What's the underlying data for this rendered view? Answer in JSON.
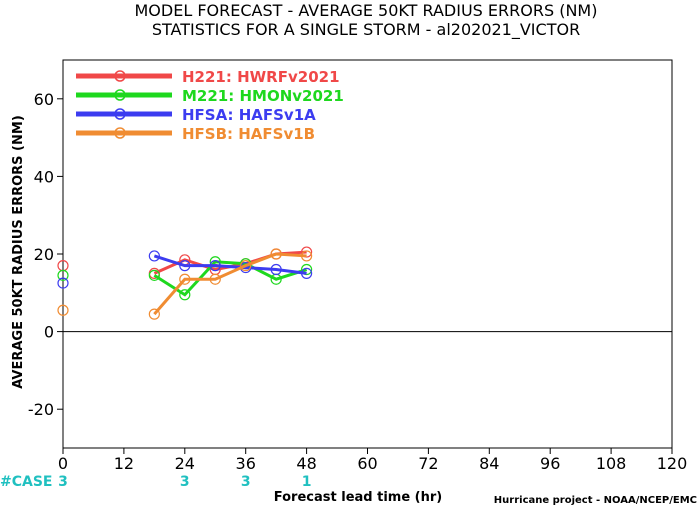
{
  "chart_data": {
    "type": "line",
    "title": "MODEL FORECAST - AVERAGE 50KT RADIUS ERRORS (NM)",
    "subtitle": "STATISTICS FOR A SINGLE STORM - al202021_VICTOR",
    "xlabel": "Forecast lead time (hr)",
    "ylabel": "AVERAGE 50KT RADIUS ERRORS (NM)",
    "xlim": [
      0,
      120
    ],
    "ylim": [
      -30,
      70
    ],
    "xticks": [
      0,
      12,
      24,
      36,
      48,
      60,
      72,
      84,
      96,
      108,
      120
    ],
    "yticks": [
      -20,
      0,
      20,
      40,
      60
    ],
    "zero_line": true,
    "legend_position": "top-left",
    "series": [
      {
        "name": "H221: HWRFv2021",
        "color": "#f04848",
        "x": [
          0,
          18,
          24,
          30,
          36,
          42,
          48
        ],
        "y": [
          17,
          15,
          18.5,
          16,
          17.5,
          20,
          20.5
        ]
      },
      {
        "name": "M221: HMONv2021",
        "color": "#1ed81e",
        "x": [
          0,
          18,
          24,
          30,
          36,
          42,
          48
        ],
        "y": [
          14.5,
          14.5,
          9.5,
          18,
          17.5,
          13.5,
          16
        ]
      },
      {
        "name": "HFSA: HAFSv1A",
        "color": "#3c3cf0",
        "x": [
          0,
          18,
          24,
          30,
          36,
          42,
          48
        ],
        "y": [
          12.5,
          19.5,
          17,
          17,
          16.5,
          16,
          15
        ]
      },
      {
        "name": "HFSB: HAFSv1B",
        "color": "#f08c32",
        "x": [
          0,
          18,
          24,
          30,
          36,
          42,
          48
        ],
        "y": [
          5.5,
          4.5,
          13.5,
          13.5,
          17,
          20,
          19.5
        ]
      }
    ],
    "cases": {
      "label": "#CASE",
      "color": "#20c0c0",
      "entries": [
        {
          "x": 0,
          "value": "3"
        },
        {
          "x": 24,
          "value": "3"
        },
        {
          "x": 36,
          "value": "3"
        },
        {
          "x": 48,
          "value": "1"
        }
      ]
    },
    "credit": "Hurricane project - NOAA/NCEP/EMC"
  }
}
